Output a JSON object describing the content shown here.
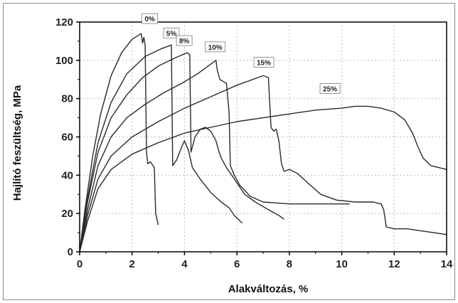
{
  "chart_data": {
    "type": "line",
    "title": "",
    "xlabel": "Alakváltozás, %",
    "ylabel": "Hajlító feszültség, MPa",
    "xlim": [
      0,
      14
    ],
    "ylim": [
      0,
      120
    ],
    "xticks": [
      "0",
      "2",
      "4",
      "6",
      "8",
      "10",
      "12",
      "14"
    ],
    "yticks": [
      "0",
      "20",
      "40",
      "60",
      "80",
      "100",
      "120"
    ],
    "grid": true,
    "legend": "none",
    "colors": {
      "series": "#2a2a2a",
      "grid": "#bdbdbd",
      "axis": "#000000"
    },
    "series": [
      {
        "name": "0%",
        "points": [
          [
            0,
            0
          ],
          [
            0.2,
            22
          ],
          [
            0.5,
            50
          ],
          [
            0.8,
            72
          ],
          [
            1.2,
            92
          ],
          [
            1.6,
            104
          ],
          [
            2.0,
            111
          ],
          [
            2.35,
            114
          ],
          [
            2.4,
            109
          ],
          [
            2.45,
            112
          ],
          [
            2.5,
            108
          ],
          [
            2.55,
            52
          ],
          [
            2.6,
            46
          ],
          [
            2.7,
            47
          ],
          [
            2.8,
            45
          ],
          [
            2.85,
            44
          ],
          [
            2.9,
            20
          ],
          [
            3.0,
            14
          ]
        ]
      },
      {
        "name": "5%",
        "points": [
          [
            0,
            0
          ],
          [
            0.3,
            28
          ],
          [
            0.7,
            57
          ],
          [
            1.2,
            78
          ],
          [
            1.8,
            93
          ],
          [
            2.5,
            102
          ],
          [
            3.1,
            106
          ],
          [
            3.5,
            108
          ],
          [
            3.55,
            45
          ],
          [
            3.7,
            48
          ],
          [
            3.9,
            55
          ],
          [
            4.0,
            58
          ],
          [
            4.15,
            53
          ],
          [
            4.3,
            44
          ],
          [
            4.6,
            38
          ],
          [
            5.0,
            31
          ],
          [
            5.4,
            26
          ],
          [
            5.7,
            23
          ],
          [
            5.9,
            19
          ],
          [
            6.2,
            15
          ]
        ]
      },
      {
        "name": "8%",
        "points": [
          [
            0,
            0
          ],
          [
            0.3,
            26
          ],
          [
            0.7,
            52
          ],
          [
            1.2,
            70
          ],
          [
            1.8,
            82
          ],
          [
            2.4,
            91
          ],
          [
            3.0,
            97
          ],
          [
            3.6,
            101
          ],
          [
            4.1,
            104
          ],
          [
            4.2,
            103
          ],
          [
            4.25,
            52
          ],
          [
            4.4,
            60
          ],
          [
            4.6,
            64
          ],
          [
            4.8,
            65
          ],
          [
            5.0,
            63
          ],
          [
            5.2,
            58
          ],
          [
            5.3,
            53
          ],
          [
            5.4,
            49
          ],
          [
            5.6,
            44
          ],
          [
            5.8,
            40
          ],
          [
            6.0,
            36
          ],
          [
            6.3,
            30
          ],
          [
            6.7,
            26
          ],
          [
            7.2,
            22
          ],
          [
            7.6,
            19
          ],
          [
            7.8,
            17
          ]
        ]
      },
      {
        "name": "10%",
        "points": [
          [
            0,
            0
          ],
          [
            0.3,
            22
          ],
          [
            0.7,
            45
          ],
          [
            1.2,
            60
          ],
          [
            1.8,
            70
          ],
          [
            2.5,
            77
          ],
          [
            3.2,
            83
          ],
          [
            3.9,
            88
          ],
          [
            4.5,
            93
          ],
          [
            5.0,
            98
          ],
          [
            5.2,
            100
          ],
          [
            5.25,
            95
          ],
          [
            5.35,
            90
          ],
          [
            5.6,
            88
          ],
          [
            5.7,
            73
          ],
          [
            5.75,
            45
          ],
          [
            5.9,
            40
          ],
          [
            6.1,
            35
          ],
          [
            6.5,
            29
          ],
          [
            7.0,
            26
          ],
          [
            8.0,
            25
          ],
          [
            9.0,
            25
          ],
          [
            10.3,
            25
          ]
        ]
      },
      {
        "name": "15%",
        "points": [
          [
            0,
            0
          ],
          [
            0.3,
            19
          ],
          [
            0.7,
            38
          ],
          [
            1.2,
            50
          ],
          [
            2.0,
            60
          ],
          [
            3.0,
            68
          ],
          [
            4.0,
            75
          ],
          [
            5.0,
            81
          ],
          [
            6.0,
            87
          ],
          [
            7.0,
            92
          ],
          [
            7.2,
            91
          ],
          [
            7.3,
            65
          ],
          [
            7.4,
            63
          ],
          [
            7.5,
            64
          ],
          [
            7.6,
            58
          ],
          [
            7.7,
            46
          ],
          [
            7.8,
            42
          ],
          [
            8.0,
            43
          ],
          [
            8.3,
            41
          ],
          [
            8.7,
            36
          ],
          [
            9.2,
            30
          ],
          [
            9.8,
            27
          ],
          [
            10.5,
            26
          ],
          [
            11.2,
            26
          ],
          [
            11.5,
            25
          ],
          [
            11.6,
            22
          ],
          [
            11.7,
            13
          ],
          [
            12.0,
            12
          ],
          [
            12.5,
            12
          ],
          [
            13.0,
            11
          ],
          [
            13.5,
            10
          ],
          [
            14.0,
            9
          ]
        ]
      },
      {
        "name": "25%",
        "points": [
          [
            0,
            0
          ],
          [
            0.3,
            16
          ],
          [
            0.7,
            33
          ],
          [
            1.2,
            43
          ],
          [
            2.0,
            51
          ],
          [
            3.0,
            57
          ],
          [
            4.0,
            62
          ],
          [
            5.0,
            65
          ],
          [
            6.0,
            68
          ],
          [
            7.0,
            70
          ],
          [
            8.0,
            72
          ],
          [
            9.0,
            74
          ],
          [
            10.0,
            75
          ],
          [
            10.5,
            76
          ],
          [
            11.0,
            76
          ],
          [
            11.5,
            75
          ],
          [
            12.0,
            73
          ],
          [
            12.4,
            69
          ],
          [
            12.7,
            62
          ],
          [
            12.9,
            55
          ],
          [
            13.1,
            49
          ],
          [
            13.4,
            45
          ],
          [
            13.7,
            44
          ],
          [
            14.0,
            43
          ]
        ]
      }
    ]
  }
}
